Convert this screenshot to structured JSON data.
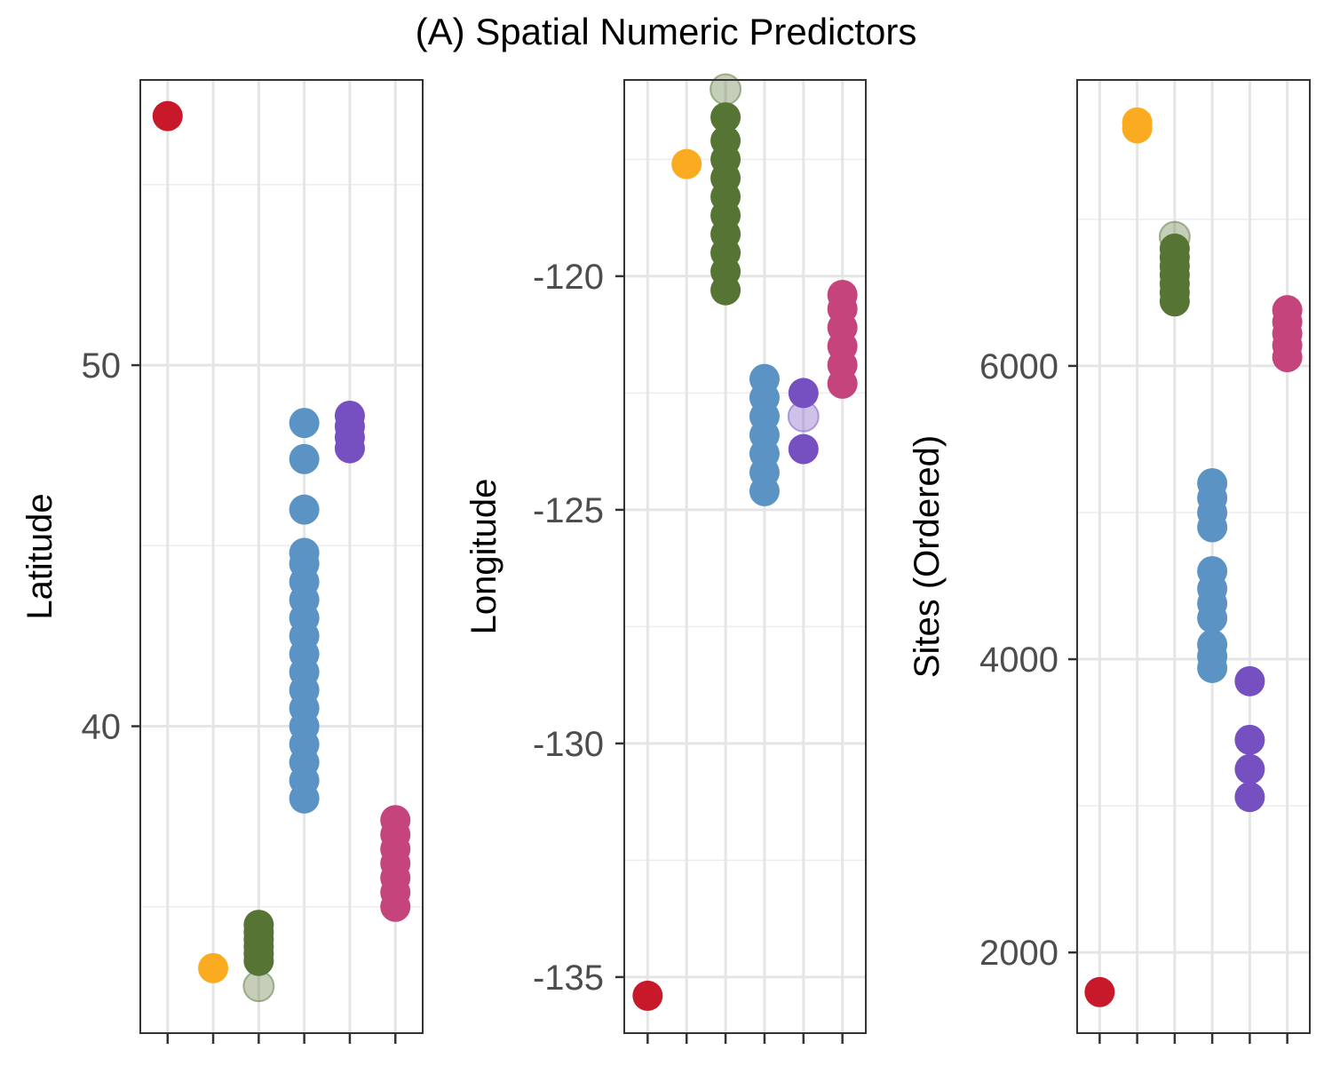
{
  "chart_data": [
    {
      "panel_title": "(A) Spatial Numeric Predictors",
      "type": "scatter",
      "ylabel": "Latitude",
      "ylim": [
        31.5,
        57.9
      ],
      "yticks": [
        40,
        50
      ],
      "yticks_minor": [
        35,
        45,
        55
      ],
      "groups": 6,
      "colors": [
        "#c8192a",
        "#fbab20",
        "#567433",
        "#5a93c4",
        "#7650c1",
        "#c6447c"
      ],
      "series": [
        {
          "group": 1,
          "values": [
            56.9
          ]
        },
        {
          "group": 2,
          "values": [
            33.3
          ]
        },
        {
          "group": 3,
          "values": [
            33.5,
            33.7,
            33.9,
            34.1,
            34.3,
            34.5
          ],
          "faded": [
            32.8
          ]
        },
        {
          "group": 4,
          "values": [
            38.0,
            38.5,
            39.0,
            39.5,
            40.0,
            40.5,
            41.0,
            41.5,
            42.0,
            42.5,
            43.0,
            43.5,
            44.0,
            44.5,
            44.8,
            46.0,
            47.4,
            48.4
          ]
        },
        {
          "group": 5,
          "values": [
            47.7,
            48.0,
            48.3,
            48.6
          ]
        },
        {
          "group": 6,
          "values": [
            35.0,
            35.4,
            35.8,
            36.2,
            36.6,
            37.0,
            37.4
          ]
        }
      ]
    },
    {
      "type": "scatter",
      "ylabel": "Longitude",
      "ylim": [
        -136.2,
        -115.8
      ],
      "yticks": [
        -120,
        -125,
        -130,
        -135
      ],
      "yticks_minor": [
        -117.5,
        -122.5,
        -127.5,
        -132.5
      ],
      "groups": 6,
      "colors": [
        "#c8192a",
        "#fbab20",
        "#567433",
        "#5a93c4",
        "#7650c1",
        "#c6447c"
      ],
      "series": [
        {
          "group": 1,
          "values": [
            -135.4
          ]
        },
        {
          "group": 2,
          "values": [
            -117.6
          ]
        },
        {
          "group": 3,
          "values": [
            -120.3,
            -119.9,
            -119.5,
            -119.1,
            -118.7,
            -118.3,
            -117.9,
            -117.5,
            -117.1,
            -116.6
          ],
          "faded": [
            -116.0
          ]
        },
        {
          "group": 4,
          "values": [
            -124.6,
            -124.2,
            -123.8,
            -123.4,
            -123.0,
            -122.6,
            -122.2
          ]
        },
        {
          "group": 5,
          "values": [
            -122.5,
            -123.7
          ],
          "faded": [
            -123.0
          ]
        },
        {
          "group": 6,
          "values": [
            -122.3,
            -121.9,
            -121.5,
            -121.1,
            -120.7,
            -120.4
          ]
        }
      ]
    },
    {
      "type": "scatter",
      "ylabel": "Sites (Ordered)",
      "ylim": [
        1450,
        7950
      ],
      "yticks": [
        2000,
        4000,
        6000
      ],
      "yticks_minor": [
        3000,
        5000,
        7000
      ],
      "groups": 6,
      "colors": [
        "#c8192a",
        "#fbab20",
        "#567433",
        "#5a93c4",
        "#7650c1",
        "#c6447c"
      ],
      "series": [
        {
          "group": 1,
          "values": [
            1730
          ]
        },
        {
          "group": 2,
          "values": [
            7620,
            7660
          ]
        },
        {
          "group": 3,
          "values": [
            6440,
            6500,
            6560,
            6620,
            6680,
            6740,
            6800
          ],
          "faded": [
            6880
          ]
        },
        {
          "group": 4,
          "values": [
            3940,
            4020,
            4100,
            4280,
            4380,
            4480,
            4600,
            4900,
            5000,
            5100,
            5200
          ]
        },
        {
          "group": 5,
          "values": [
            3850,
            3450,
            3250,
            3060
          ]
        },
        {
          "group": 6,
          "values": [
            6060,
            6140,
            6220,
            6300,
            6380
          ]
        }
      ]
    }
  ]
}
